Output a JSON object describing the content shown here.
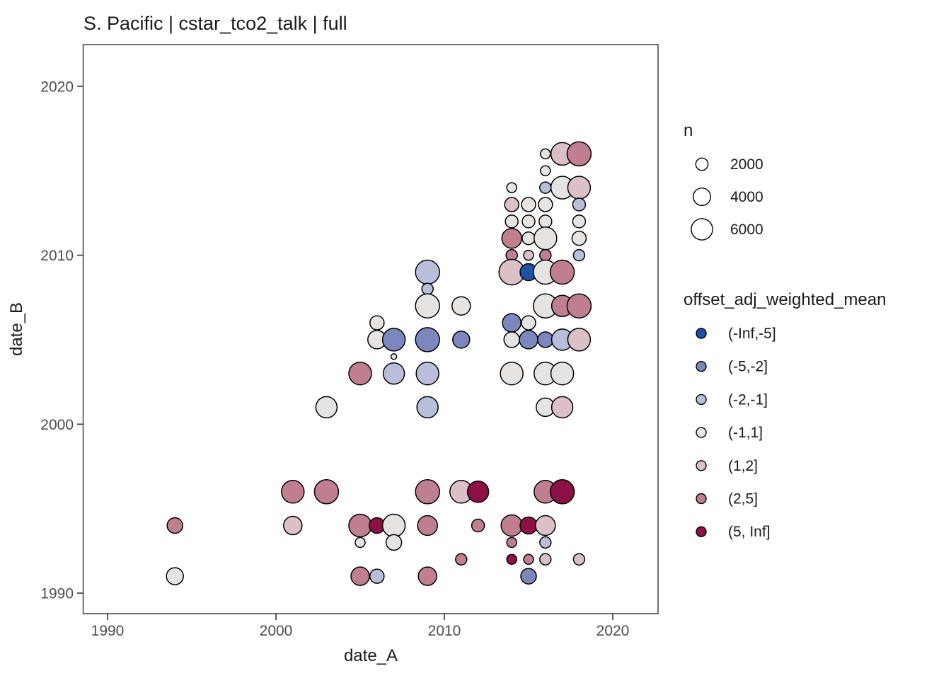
{
  "title": "S. Pacific | cstar_tco2_talk | full",
  "chart_data": {
    "type": "scatter",
    "title": "S. Pacific | cstar_tco2_talk | full",
    "xlabel": "date_A",
    "ylabel": "date_B",
    "x_ticks": [
      1990,
      2000,
      2010,
      2020
    ],
    "y_ticks": [
      1990,
      2000,
      2010,
      2020
    ],
    "xlim": [
      1988.6,
      2022.7
    ],
    "ylim": [
      1988.8,
      2022.4
    ],
    "grid": false,
    "legend_position": "right",
    "size_legend": {
      "title": "n",
      "values": [
        2000,
        4000,
        6000
      ]
    },
    "color_legend": {
      "title": "offset_adj_weighted_mean",
      "bins": [
        {
          "label": "(-Inf,-5]",
          "color": "#1c53a6"
        },
        {
          "label": "(-5,-2]",
          "color": "#7c87bd"
        },
        {
          "label": "(-2,-1]",
          "color": "#b9bfda"
        },
        {
          "label": "(-1,1]",
          "color": "#e6e4e2"
        },
        {
          "label": "(1,2]",
          "color": "#dbc0c8"
        },
        {
          "label": "(2,5]",
          "color": "#c07f90"
        },
        {
          "label": "(5, Inf]",
          "color": "#8d1045"
        }
      ]
    },
    "points": [
      {
        "date_A": 2016,
        "date_B": 2016,
        "n": 1290,
        "bin": "(-1,1]"
      },
      {
        "date_A": 2017,
        "date_B": 2016,
        "n": 6730,
        "bin": "(1,2]"
      },
      {
        "date_A": 2018,
        "date_B": 2016,
        "n": 7600,
        "bin": "(2,5]"
      },
      {
        "date_A": 2016,
        "date_B": 2015,
        "n": 1290,
        "bin": "(-1,1]"
      },
      {
        "date_A": 2014,
        "date_B": 2014,
        "n": 1290,
        "bin": "(-1,1]"
      },
      {
        "date_A": 2016,
        "date_B": 2014,
        "n": 1680,
        "bin": "(-2,-1]"
      },
      {
        "date_A": 2017,
        "date_B": 2014,
        "n": 6730,
        "bin": "(-1,1]"
      },
      {
        "date_A": 2018,
        "date_B": 2014,
        "n": 6730,
        "bin": "(1,2]"
      },
      {
        "date_A": 2014,
        "date_B": 2013,
        "n": 2630,
        "bin": "(1,2]"
      },
      {
        "date_A": 2015,
        "date_B": 2013,
        "n": 2630,
        "bin": "(-1,1]"
      },
      {
        "date_A": 2016,
        "date_B": 2013,
        "n": 2630,
        "bin": "(-1,1]"
      },
      {
        "date_A": 2018,
        "date_B": 2013,
        "n": 2130,
        "bin": "(-2,-1]"
      },
      {
        "date_A": 2014,
        "date_B": 2012,
        "n": 2130,
        "bin": "(-1,1]"
      },
      {
        "date_A": 2015,
        "date_B": 2012,
        "n": 2130,
        "bin": "(-1,1]"
      },
      {
        "date_A": 2016,
        "date_B": 2012,
        "n": 2130,
        "bin": "(-1,1]"
      },
      {
        "date_A": 2018,
        "date_B": 2012,
        "n": 2130,
        "bin": "(-1,1]"
      },
      {
        "date_A": 2014,
        "date_B": 2011,
        "n": 5150,
        "bin": "(2,5]"
      },
      {
        "date_A": 2015,
        "date_B": 2011,
        "n": 2130,
        "bin": "(-1,1]"
      },
      {
        "date_A": 2016,
        "date_B": 2011,
        "n": 6730,
        "bin": "(-1,1]"
      },
      {
        "date_A": 2018,
        "date_B": 2011,
        "n": 2630,
        "bin": "(-1,1]"
      },
      {
        "date_A": 2014,
        "date_B": 2010,
        "n": 1680,
        "bin": "(2,5]"
      },
      {
        "date_A": 2015,
        "date_B": 2010,
        "n": 1290,
        "bin": "(1,2]"
      },
      {
        "date_A": 2016,
        "date_B": 2010,
        "n": 1680,
        "bin": "(2,5]"
      },
      {
        "date_A": 2018,
        "date_B": 2010,
        "n": 1680,
        "bin": "(-2,-1]"
      },
      {
        "date_A": 2009,
        "date_B": 2009,
        "n": 7600,
        "bin": "(-2,-1]"
      },
      {
        "date_A": 2014,
        "date_B": 2009,
        "n": 8520,
        "bin": "(1,2]"
      },
      {
        "date_A": 2015,
        "date_B": 2009,
        "n": 3790,
        "bin": "(-Inf,-5]"
      },
      {
        "date_A": 2016,
        "date_B": 2009,
        "n": 7600,
        "bin": "(-1,1]"
      },
      {
        "date_A": 2017,
        "date_B": 2009,
        "n": 7600,
        "bin": "(2,5]"
      },
      {
        "date_A": 2009,
        "date_B": 2008,
        "n": 1680,
        "bin": "(-2,-1]"
      },
      {
        "date_A": 2009,
        "date_B": 2007,
        "n": 7600,
        "bin": "(-1,1]"
      },
      {
        "date_A": 2011,
        "date_B": 2007,
        "n": 4440,
        "bin": "(-1,1]"
      },
      {
        "date_A": 2016,
        "date_B": 2007,
        "n": 7600,
        "bin": "(-1,1]"
      },
      {
        "date_A": 2017,
        "date_B": 2007,
        "n": 5920,
        "bin": "(2,5]"
      },
      {
        "date_A": 2018,
        "date_B": 2007,
        "n": 7600,
        "bin": "(2,5]"
      },
      {
        "date_A": 2006,
        "date_B": 2006,
        "n": 2630,
        "bin": "(-1,1]"
      },
      {
        "date_A": 2014,
        "date_B": 2006,
        "n": 4440,
        "bin": "(-5,-2]"
      },
      {
        "date_A": 2015,
        "date_B": 2006,
        "n": 2630,
        "bin": "(-1,1]"
      },
      {
        "date_A": 2006,
        "date_B": 2005,
        "n": 4440,
        "bin": "(-1,1]"
      },
      {
        "date_A": 2007,
        "date_B": 2005,
        "n": 6730,
        "bin": "(-5,-2]"
      },
      {
        "date_A": 2009,
        "date_B": 2005,
        "n": 7600,
        "bin": "(-5,-2]"
      },
      {
        "date_A": 2011,
        "date_B": 2005,
        "n": 3790,
        "bin": "(-5,-2]"
      },
      {
        "date_A": 2014,
        "date_B": 2005,
        "n": 3180,
        "bin": "(-1,1]"
      },
      {
        "date_A": 2015,
        "date_B": 2005,
        "n": 4440,
        "bin": "(-5,-2]"
      },
      {
        "date_A": 2016,
        "date_B": 2005,
        "n": 3180,
        "bin": "(-5,-2]"
      },
      {
        "date_A": 2017,
        "date_B": 2005,
        "n": 5920,
        "bin": "(-2,-1]"
      },
      {
        "date_A": 2018,
        "date_B": 2005,
        "n": 6730,
        "bin": "(1,2]"
      },
      {
        "date_A": 2007,
        "date_B": 2004,
        "n": 420,
        "bin": "(-1,1]"
      },
      {
        "date_A": 2005,
        "date_B": 2003,
        "n": 6730,
        "bin": "(2,5]"
      },
      {
        "date_A": 2007,
        "date_B": 2003,
        "n": 5920,
        "bin": "(-2,-1]"
      },
      {
        "date_A": 2009,
        "date_B": 2003,
        "n": 6730,
        "bin": "(-2,-1]"
      },
      {
        "date_A": 2014,
        "date_B": 2003,
        "n": 6730,
        "bin": "(-1,1]"
      },
      {
        "date_A": 2016,
        "date_B": 2003,
        "n": 6730,
        "bin": "(-1,1]"
      },
      {
        "date_A": 2017,
        "date_B": 2003,
        "n": 6730,
        "bin": "(-1,1]"
      },
      {
        "date_A": 2003,
        "date_B": 2001,
        "n": 5920,
        "bin": "(-1,1]"
      },
      {
        "date_A": 2009,
        "date_B": 2001,
        "n": 5920,
        "bin": "(-2,-1]"
      },
      {
        "date_A": 2016,
        "date_B": 2001,
        "n": 4440,
        "bin": "(-1,1]"
      },
      {
        "date_A": 2017,
        "date_B": 2001,
        "n": 5920,
        "bin": "(1,2]"
      },
      {
        "date_A": 2001,
        "date_B": 1996,
        "n": 6730,
        "bin": "(2,5]"
      },
      {
        "date_A": 2003,
        "date_B": 1996,
        "n": 7600,
        "bin": "(2,5]"
      },
      {
        "date_A": 2009,
        "date_B": 1996,
        "n": 7600,
        "bin": "(2,5]"
      },
      {
        "date_A": 2011,
        "date_B": 1996,
        "n": 6730,
        "bin": "(1,2]"
      },
      {
        "date_A": 2012,
        "date_B": 1996,
        "n": 5920,
        "bin": "(5, Inf]"
      },
      {
        "date_A": 2016,
        "date_B": 1996,
        "n": 6730,
        "bin": "(2,5]"
      },
      {
        "date_A": 2017,
        "date_B": 1996,
        "n": 7600,
        "bin": "(5, Inf]"
      },
      {
        "date_A": 1994,
        "date_B": 1994,
        "n": 3180,
        "bin": "(2,5]"
      },
      {
        "date_A": 2001,
        "date_B": 1994,
        "n": 4440,
        "bin": "(1,2]"
      },
      {
        "date_A": 2005,
        "date_B": 1994,
        "n": 6730,
        "bin": "(2,5]"
      },
      {
        "date_A": 2006,
        "date_B": 1994,
        "n": 3180,
        "bin": "(5, Inf]"
      },
      {
        "date_A": 2007,
        "date_B": 1994,
        "n": 6730,
        "bin": "(-1,1]"
      },
      {
        "date_A": 2009,
        "date_B": 1994,
        "n": 5150,
        "bin": "(2,5]"
      },
      {
        "date_A": 2012,
        "date_B": 1994,
        "n": 2130,
        "bin": "(2,5]"
      },
      {
        "date_A": 2014,
        "date_B": 1994,
        "n": 5920,
        "bin": "(2,5]"
      },
      {
        "date_A": 2015,
        "date_B": 1994,
        "n": 3790,
        "bin": "(5, Inf]"
      },
      {
        "date_A": 2016,
        "date_B": 1994,
        "n": 5150,
        "bin": "(1,2]"
      },
      {
        "date_A": 2005,
        "date_B": 1993,
        "n": 1290,
        "bin": "(-1,1]"
      },
      {
        "date_A": 2007,
        "date_B": 1993,
        "n": 3180,
        "bin": "(-1,1]"
      },
      {
        "date_A": 2014,
        "date_B": 1993,
        "n": 1290,
        "bin": "(2,5]"
      },
      {
        "date_A": 2016,
        "date_B": 1993,
        "n": 1680,
        "bin": "(-2,-1]"
      },
      {
        "date_A": 2011,
        "date_B": 1992,
        "n": 1680,
        "bin": "(2,5]"
      },
      {
        "date_A": 2014,
        "date_B": 1992,
        "n": 1290,
        "bin": "(5, Inf]"
      },
      {
        "date_A": 2015,
        "date_B": 1992,
        "n": 1290,
        "bin": "(2,5]"
      },
      {
        "date_A": 2016,
        "date_B": 1992,
        "n": 1680,
        "bin": "(1,2]"
      },
      {
        "date_A": 2018,
        "date_B": 1992,
        "n": 1680,
        "bin": "(1,2]"
      },
      {
        "date_A": 1994,
        "date_B": 1991,
        "n": 3790,
        "bin": "(-1,1]"
      },
      {
        "date_A": 2005,
        "date_B": 1991,
        "n": 4440,
        "bin": "(2,5]"
      },
      {
        "date_A": 2006,
        "date_B": 1991,
        "n": 2630,
        "bin": "(-2,-1]"
      },
      {
        "date_A": 2009,
        "date_B": 1991,
        "n": 4440,
        "bin": "(2,5]"
      },
      {
        "date_A": 2015,
        "date_B": 1991,
        "n": 3180,
        "bin": "(-5,-2]"
      }
    ]
  },
  "style": {
    "point_stroke": "#000000",
    "panel_border": "#333333",
    "tick_color": "#333333",
    "tick_label_color": "#4d4d4d",
    "panel_background": "#ffffff"
  }
}
